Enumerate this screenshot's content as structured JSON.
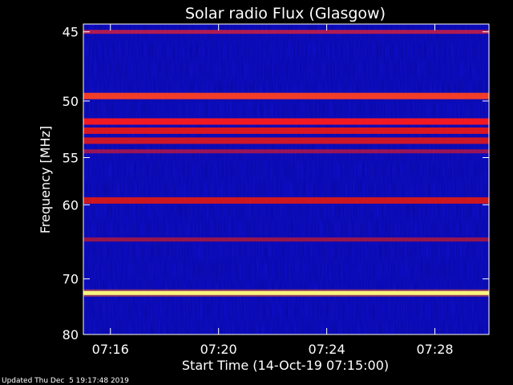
{
  "chart_data": {
    "type": "heatmap",
    "title": "Solar radio Flux (Glasgow)",
    "xlabel": "Start Time (14-Oct-19 07:15:00)",
    "ylabel": "Frequency [MHz]",
    "x_ticks": [
      "07:16",
      "07:20",
      "07:24",
      "07:28"
    ],
    "x_tick_minutes": [
      1,
      5,
      9,
      13
    ],
    "xlim_minutes": [
      0,
      15
    ],
    "y_ticks": [
      45,
      50,
      55,
      60,
      70,
      80
    ],
    "ylim": [
      44.5,
      80
    ],
    "y_scale": "reciprocal",
    "background_intensity": "low (blue)",
    "bands": [
      {
        "frequency": 45.0,
        "intensity": "medium",
        "color": "#cc2040"
      },
      {
        "frequency": 49.6,
        "intensity": "high",
        "color": "#ff4020"
      },
      {
        "frequency": 51.7,
        "intensity": "high",
        "color": "#ff1a1a"
      },
      {
        "frequency": 52.5,
        "intensity": "high",
        "color": "#e81818"
      },
      {
        "frequency": 53.4,
        "intensity": "high",
        "color": "#d81822"
      },
      {
        "frequency": 54.4,
        "intensity": "medium",
        "color": "#b01848"
      },
      {
        "frequency": 59.5,
        "intensity": "high",
        "color": "#d81818"
      },
      {
        "frequency": 64.3,
        "intensity": "medium",
        "color": "#b01838"
      },
      {
        "frequency": 72.3,
        "intensity": "very high",
        "color": "#ffff80"
      }
    ],
    "grid": false,
    "colormap": [
      "#0000ff",
      "#ff0000",
      "#ffff00",
      "#ffffff"
    ]
  },
  "footer": {
    "updated": "Updated Thu Dec  5 19:17:48 2019"
  }
}
